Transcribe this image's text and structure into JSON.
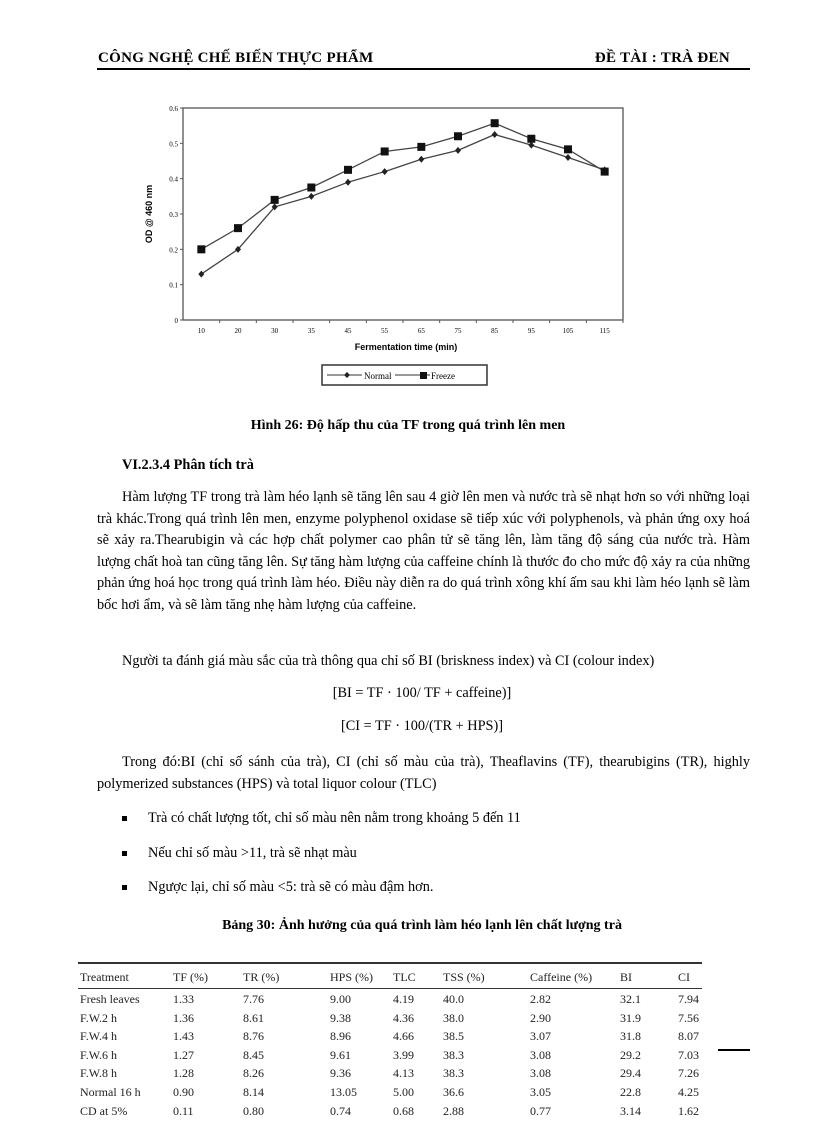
{
  "header": {
    "left": "CÔNG NGHỆ CHẾ BIẾN THỰC PHẨM",
    "right": "ĐỀ TÀI : TRÀ ĐEN"
  },
  "chart_data": {
    "type": "line",
    "title": "",
    "xlabel": "Fermentation time (min)",
    "ylabel": "OD @ 460 nm",
    "categories": [
      "10",
      "20",
      "30",
      "35",
      "45",
      "55",
      "65",
      "75",
      "85",
      "95",
      "105",
      "115"
    ],
    "ylim": [
      0,
      0.6
    ],
    "yticks": [
      "0",
      "0.1",
      "0.2",
      "0.3",
      "0.4",
      "0.5",
      "0.6"
    ],
    "grid": false,
    "legend": "bottom",
    "series": [
      {
        "name": "Normal",
        "marker": "diamond",
        "values": [
          0.13,
          0.2,
          0.32,
          0.35,
          0.39,
          0.42,
          0.455,
          0.48,
          0.525,
          0.495,
          0.46,
          0.425
        ]
      },
      {
        "name": "Freeze",
        "marker": "square",
        "values": [
          0.2,
          0.26,
          0.34,
          0.375,
          0.425,
          0.477,
          0.49,
          0.52,
          0.557,
          0.513,
          0.483,
          0.42
        ]
      }
    ]
  },
  "figure_caption": "Hình 26: Độ hấp thu của TF trong quá trình lên men",
  "section_heading": "VI.2.3.4 Phân tích trà",
  "paragraph1": "Hàm lượng TF trong trà làm héo lạnh sẽ tăng lên sau 4 giờ lên men và nước trà sẽ nhạt hơn so với những loại trà khác.Trong quá trình lên men, enzyme polyphenol oxidase sẽ tiếp xúc với polyphenols, và phản ứng oxy hoá sẽ xảy ra.Thearubigin và các hợp chất polymer cao phân tử sẽ tăng lên, làm tăng độ sáng của nước trà. Hàm lượng chất hoà tan cũng tăng lên. Sự tăng hàm lượng của caffeine chính là thước đo cho mức độ xảy ra của những phản ứng hoá học trong quá trình làm héo. Điều này diễn ra do quá trình xông khí ấm sau khi làm héo lạnh sẽ làm bốc hơi ẩm, và sẽ làm tăng nhẹ hàm lượng của caffeine.",
  "paragraph2": "Người ta đánh giá màu sắc của trà thông qua chỉ số BI (briskness index) và CI (colour index)",
  "formula1": "[BI = TF · 100/ TF + caffeine)]",
  "formula2": "[CI = TF · 100/(TR + HPS)]",
  "paragraph3": "Trong đó:BI (chỉ số sánh của trà), CI (chỉ số màu của trà), Theaflavins (TF), thearubigins (TR), highly polymerized substances (HPS) và total liquor colour (TLC)",
  "bullets": [
    "Trà có chất lượng tốt, chỉ số màu nên nằm trong khoảng 5 đến 11",
    "Nếu chỉ số màu >11, trà sẽ nhạt màu",
    "Ngược lại, chỉ số màu <5: trà sẽ có màu đậm hơn."
  ],
  "table_caption": "Bảng 30: Ảnh hưởng của quá trình làm héo lạnh lên chất lượng trà",
  "table": {
    "headers": [
      "Treatment",
      "TF (%)",
      "TR (%)",
      "HPS (%)",
      "TLC",
      "TSS (%)",
      "Caffeine (%)",
      "BI",
      "CI"
    ],
    "rows": [
      [
        "Fresh leaves",
        "1.33",
        "7.76",
        "9.00",
        "4.19",
        "40.0",
        "2.82",
        "32.1",
        "7.94"
      ],
      [
        "F.W.2 h",
        "1.36",
        "8.61",
        "9.38",
        "4.36",
        "38.0",
        "2.90",
        "31.9",
        "7.56"
      ],
      [
        "F.W.4 h",
        "1.43",
        "8.76",
        "8.96",
        "4.66",
        "38.5",
        "3.07",
        "31.8",
        "8.07"
      ],
      [
        "F.W.6 h",
        "1.27",
        "8.45",
        "9.61",
        "3.99",
        "38.3",
        "3.08",
        "29.2",
        "7.03"
      ],
      [
        "F.W.8 h",
        "1.28",
        "8.26",
        "9.36",
        "4.13",
        "38.3",
        "3.08",
        "29.4",
        "7.26"
      ],
      [
        "Normal 16 h",
        "0.90",
        "8.14",
        "13.05",
        "5.00",
        "36.6",
        "3.05",
        "22.8",
        "4.25"
      ],
      [
        "CD at 5%",
        "0.11",
        "0.80",
        "0.74",
        "0.68",
        "2.88",
        "0.77",
        "3.14",
        "1.62"
      ]
    ]
  }
}
